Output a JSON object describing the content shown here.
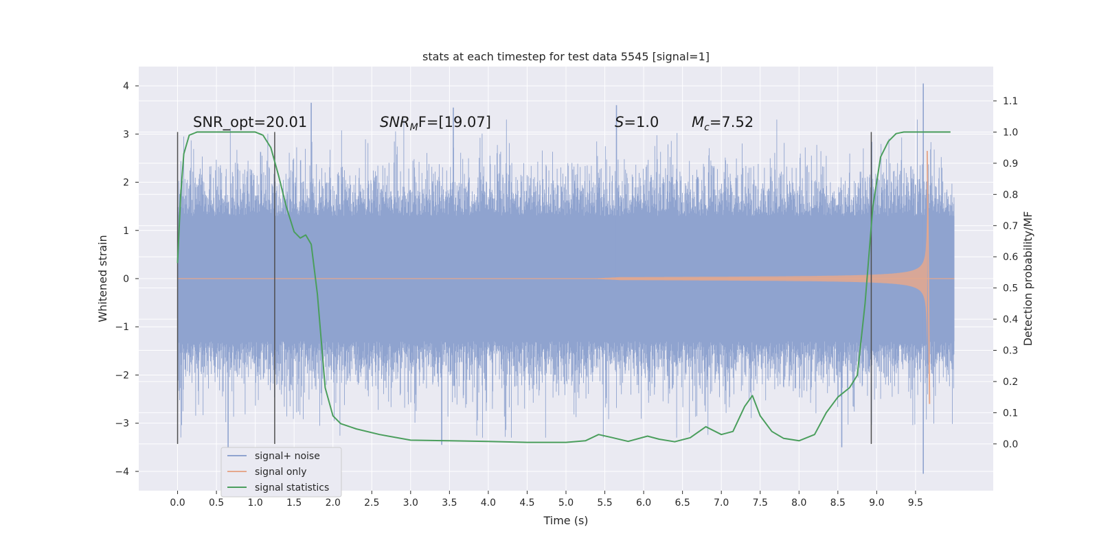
{
  "chart_data": {
    "type": "line",
    "title": "stats at each timestep for test data 5545 [signal=1]",
    "xlabel": "Time (s)",
    "ylabel": "Whitened strain",
    "y2label": "Detection probability/MF",
    "xlim": [
      -0.5,
      10.5
    ],
    "ylim": [
      -4.4,
      4.4
    ],
    "y2lim": [
      -0.15,
      1.21
    ],
    "grid": true,
    "x_ticks": [
      "0.0",
      "0.5",
      "1.0",
      "1.5",
      "2.0",
      "2.5",
      "3.0",
      "3.5",
      "4.0",
      "4.5",
      "5.0",
      "5.5",
      "6.0",
      "6.5",
      "7.0",
      "7.5",
      "8.0",
      "8.5",
      "9.0",
      "9.5"
    ],
    "y_ticks": [
      "4",
      "3",
      "2",
      "1",
      "0",
      "−1",
      "−2",
      "−3",
      "−4"
    ],
    "y2_ticks": [
      "1.1",
      "1.0",
      "0.9",
      "0.8",
      "0.7",
      "0.6",
      "0.5",
      "0.4",
      "0.3",
      "0.2",
      "0.1",
      "0.0"
    ],
    "annotations": {
      "snr_opt": "SNR_opt=20.01",
      "snr_mf_main": "SNR",
      "snr_mf_sub": "M",
      "snr_mf_rest": "F=[19.07]",
      "s_main": "S",
      "s_rest": "=1.0",
      "mc_main": "M",
      "mc_sub": "c",
      "mc_rest": "=7.52"
    },
    "vertical_markers_x": [
      0.0,
      1.25,
      8.93
    ],
    "noise_envelope": {
      "x_range": [
        0.0,
        10.0
      ],
      "typical_half_width": 1.3,
      "extremes": [
        {
          "x": 1.72,
          "y": 3.65
        },
        {
          "x": 9.6,
          "y": 4.05
        },
        {
          "x": 3.55,
          "y": 3.55
        },
        {
          "x": 5.65,
          "y": 3.6
        },
        {
          "x": 9.6,
          "y": -4.05
        },
        {
          "x": 0.65,
          "y": -3.6
        },
        {
          "x": 3.4,
          "y": -3.45
        },
        {
          "x": 8.55,
          "y": -3.5
        }
      ]
    },
    "series": [
      {
        "name": "signal+ noise",
        "color": "#8fa3cf",
        "style": "dense_noise"
      },
      {
        "name": "signal only",
        "color": "#e5a88d",
        "style": "chirp",
        "chirp_start": 5.3,
        "merger_time": 9.65,
        "peak_amplitude": 2.65
      },
      {
        "name": "signal statistics",
        "color": "#4a9e5c",
        "axis": "right",
        "x": [
          0.0,
          0.04,
          0.08,
          0.15,
          0.25,
          0.4,
          0.6,
          0.8,
          1.0,
          1.1,
          1.2,
          1.3,
          1.4,
          1.5,
          1.58,
          1.65,
          1.72,
          1.8,
          1.9,
          2.0,
          2.1,
          2.3,
          2.6,
          3.0,
          3.5,
          4.0,
          4.5,
          5.0,
          5.25,
          5.42,
          5.6,
          5.8,
          6.05,
          6.2,
          6.4,
          6.6,
          6.8,
          7.0,
          7.15,
          7.3,
          7.4,
          7.5,
          7.65,
          7.8,
          8.0,
          8.2,
          8.35,
          8.5,
          8.65,
          8.75,
          8.85,
          8.95,
          9.05,
          9.15,
          9.25,
          9.35,
          9.5,
          9.7,
          9.95
        ],
        "y": [
          0.58,
          0.8,
          0.93,
          0.99,
          1.0,
          1.0,
          1.0,
          1.0,
          1.0,
          0.99,
          0.95,
          0.86,
          0.76,
          0.68,
          0.66,
          0.67,
          0.64,
          0.48,
          0.18,
          0.09,
          0.065,
          0.048,
          0.03,
          0.012,
          0.01,
          0.008,
          0.005,
          0.005,
          0.01,
          0.03,
          0.02,
          0.008,
          0.025,
          0.015,
          0.007,
          0.02,
          0.055,
          0.03,
          0.04,
          0.12,
          0.155,
          0.09,
          0.04,
          0.018,
          0.01,
          0.03,
          0.1,
          0.15,
          0.18,
          0.22,
          0.45,
          0.76,
          0.92,
          0.97,
          0.995,
          1.0,
          1.0,
          1.0,
          1.0
        ]
      }
    ],
    "legend": {
      "position": "lower-left",
      "entries": [
        "signal+ noise",
        "signal only",
        "signal statistics"
      ]
    },
    "colors": {
      "plot_bg": "#eaeaf2",
      "grid": "#ffffff",
      "marker": "#4d4d4d",
      "noise": "#8fa3cf",
      "signal": "#e5a88d",
      "stat": "#4a9e5c"
    }
  }
}
